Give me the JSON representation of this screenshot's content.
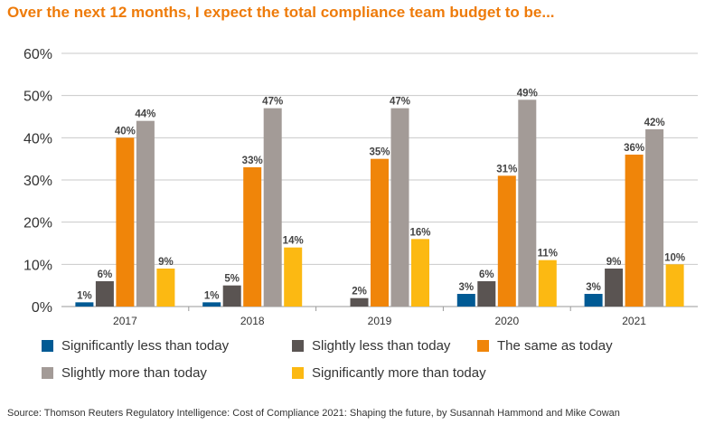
{
  "chart_data": {
    "type": "bar",
    "title": "Over the next 12 months, I expect the total compliance team budget to be...",
    "categories": [
      "2017",
      "2018",
      "2019",
      "2020",
      "2021"
    ],
    "series": [
      {
        "name": "Significantly less than today",
        "color": "#005a94",
        "values": [
          1,
          1,
          0,
          3,
          3
        ],
        "labels": [
          "1%",
          "1%",
          "",
          "3%",
          "3%"
        ]
      },
      {
        "name": "Slightly less than today",
        "color": "#5a5452",
        "values": [
          6,
          5,
          2,
          6,
          9
        ],
        "labels": [
          "6%",
          "5%",
          "2%",
          "6%",
          "9%"
        ]
      },
      {
        "name": "The same as today",
        "color": "#f08509",
        "values": [
          40,
          33,
          35,
          31,
          36
        ],
        "labels": [
          "40%",
          "33%",
          "35%",
          "31%",
          "36%"
        ]
      },
      {
        "name": "Slightly more than today",
        "color": "#a39b97",
        "values": [
          44,
          47,
          47,
          49,
          42
        ],
        "labels": [
          "44%",
          "47%",
          "47%",
          "49%",
          "42%"
        ]
      },
      {
        "name": "Significantly more than today",
        "color": "#fcb912",
        "values": [
          9,
          14,
          16,
          11,
          10
        ],
        "labels": [
          "9%",
          "14%",
          "16%",
          "11%",
          "10%"
        ]
      }
    ],
    "yticks": [
      "0%",
      "10%",
      "20%",
      "30%",
      "40%",
      "50%",
      "60%"
    ],
    "ylim": [
      0,
      60
    ],
    "xlabel": "",
    "ylabel": "",
    "grid": true,
    "legend_position": "bottom"
  },
  "source": "Source: Thomson Reuters Regulatory Intelligence: Cost of Compliance 2021: Shaping the future, by Susannah Hammond and Mike Cowan"
}
